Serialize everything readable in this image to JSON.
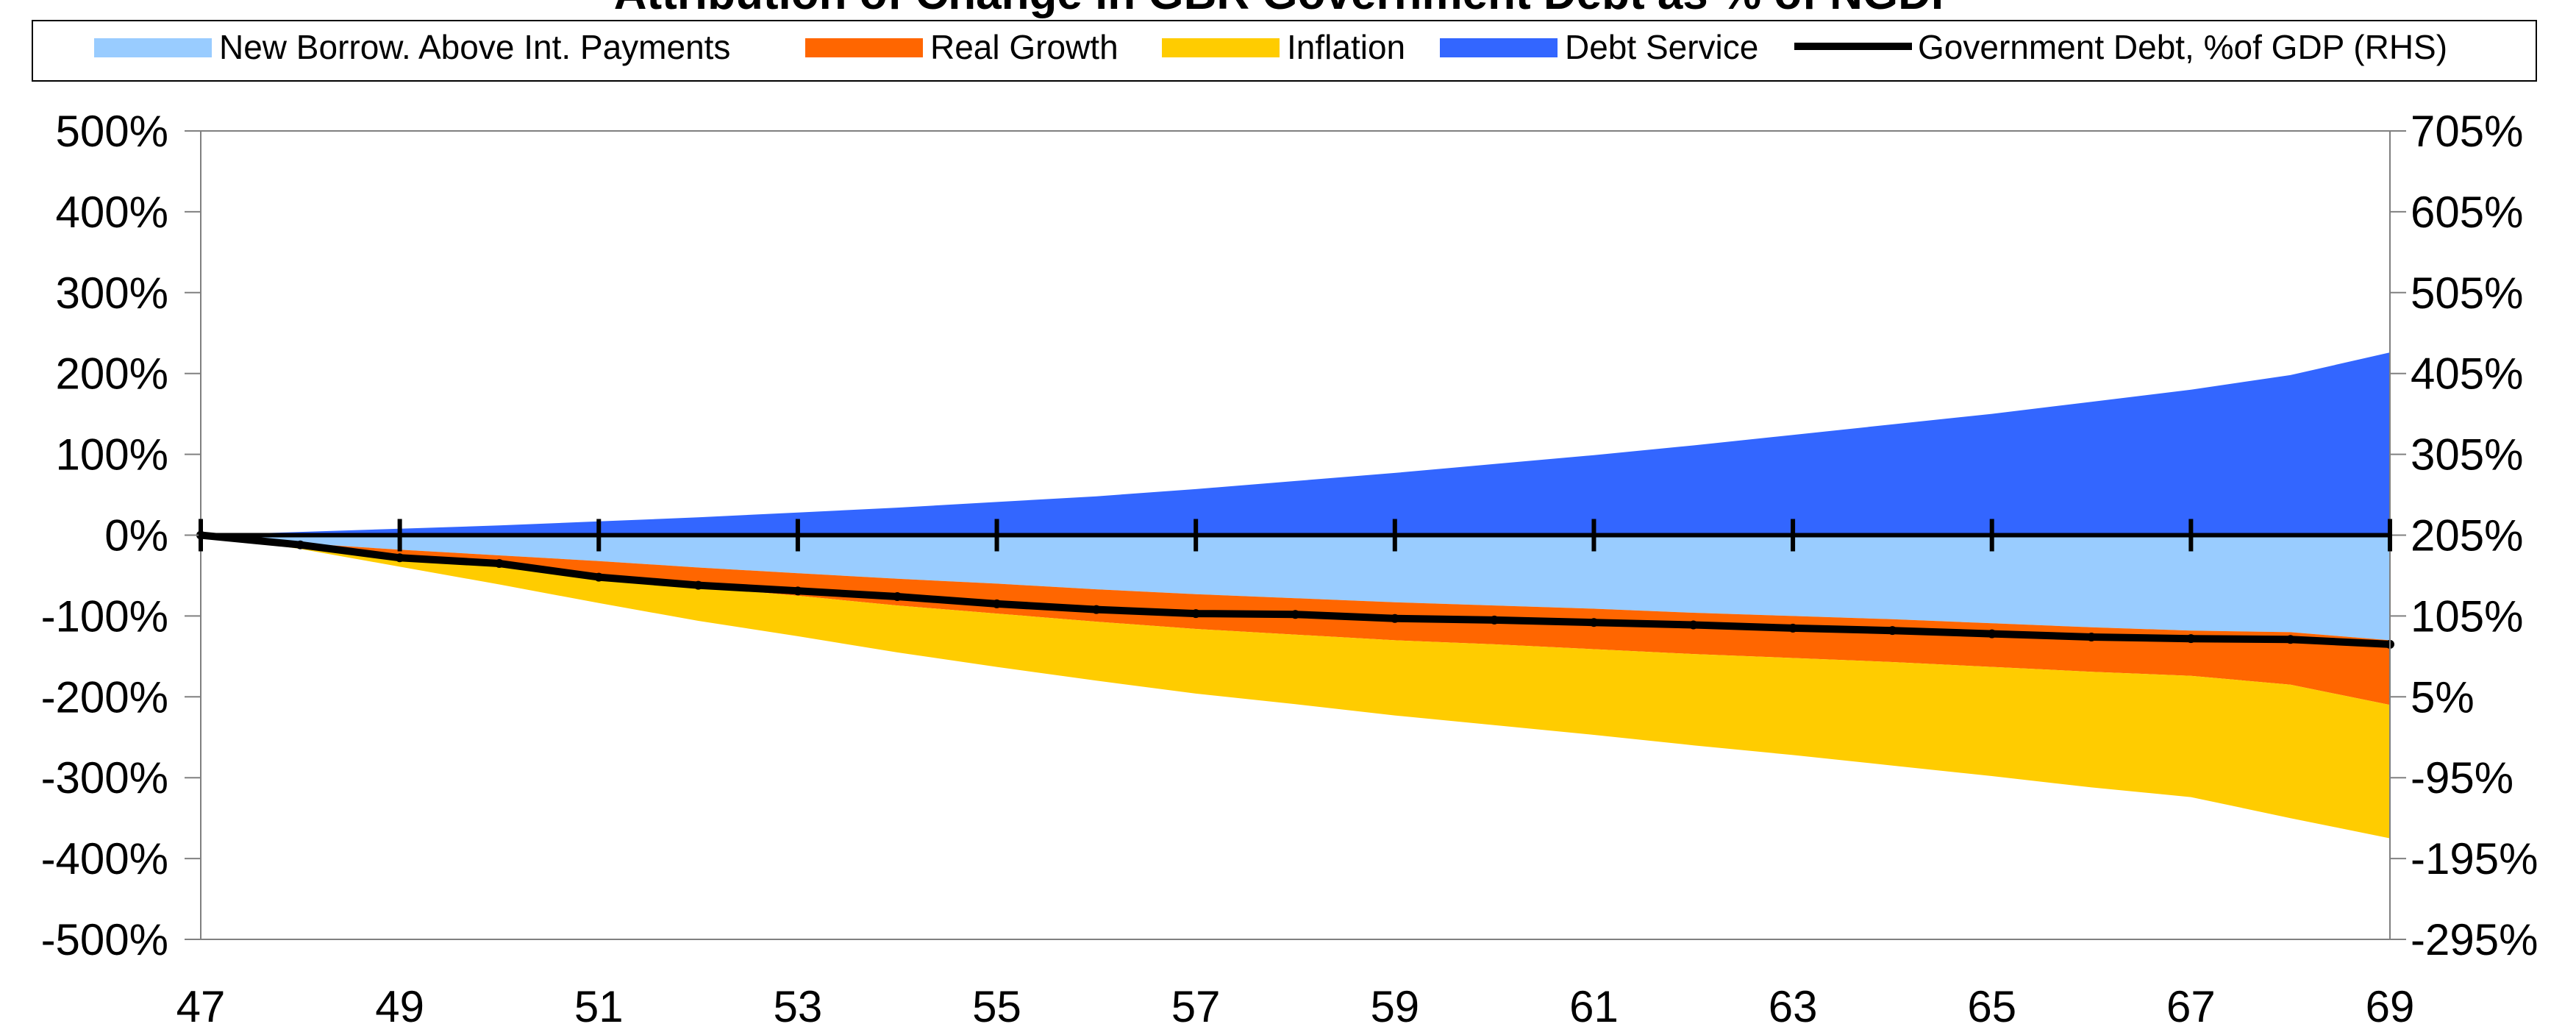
{
  "chart_data": {
    "type": "area",
    "title": "Attribution of Change in GBR Government Debt as % of NGDP",
    "legend": {
      "placement": "top",
      "items": [
        {
          "key": "new_borrowing",
          "label": "New Borrow. Above Int. Payments",
          "symbol": "box",
          "color": "#99ccff"
        },
        {
          "key": "real_growth",
          "label": "Real Growth",
          "symbol": "box",
          "color": "#ff6600"
        },
        {
          "key": "inflation",
          "label": "Inflation",
          "symbol": "box",
          "color": "#ffcc00"
        },
        {
          "key": "debt_service",
          "label": "Debt Service",
          "symbol": "box",
          "color": "#3366ff"
        },
        {
          "key": "gov_debt",
          "label": "Government Debt, %of GDP (RHS)",
          "symbol": "line",
          "color": "#000000"
        }
      ]
    },
    "x_tick_labels": [
      "47",
      "49",
      "51",
      "53",
      "55",
      "57",
      "59",
      "61",
      "63",
      "65",
      "67",
      "69"
    ],
    "xlim": [
      47,
      69
    ],
    "y_left": {
      "ticks": [
        500,
        400,
        300,
        200,
        100,
        0,
        -100,
        -200,
        -300,
        -400,
        -500
      ],
      "tick_labels": [
        "500%",
        "400%",
        "300%",
        "200%",
        "100%",
        "0%",
        "-100%",
        "-200%",
        "-300%",
        "-400%",
        "-500%"
      ],
      "range": [
        -500,
        500
      ]
    },
    "y_right": {
      "tick_labels": [
        "705%",
        "605%",
        "505%",
        "405%",
        "305%",
        "205%",
        "105%",
        "5%",
        "-95%",
        "-195%",
        "-295%"
      ],
      "range": [
        -295,
        705
      ]
    },
    "grid": false,
    "x": [
      47,
      48,
      49,
      50,
      51,
      52,
      53,
      54,
      55,
      56,
      57,
      58,
      59,
      60,
      61,
      62,
      63,
      64,
      65,
      66,
      67,
      68,
      69
    ],
    "series": [
      {
        "name": "Debt Service",
        "values": [
          0,
          4,
          8,
          12,
          17,
          22,
          28,
          34,
          41,
          48,
          57,
          67,
          77,
          88,
          99,
          111,
          124,
          137,
          150,
          165,
          180,
          198,
          226
        ]
      },
      {
        "name": "New Borrow. Above Int. Payments",
        "values": [
          0,
          -10,
          -18,
          -25,
          -32,
          -40,
          -47,
          -54,
          -60,
          -67,
          -73,
          -78,
          -83,
          -87,
          -91,
          -96,
          -100,
          -104,
          -109,
          -114,
          -118,
          -120,
          -130
        ]
      },
      {
        "name": "Real Growth",
        "values": [
          0,
          -4,
          -9,
          -14,
          -19,
          -24,
          -28,
          -33,
          -37,
          -40,
          -43,
          -45,
          -47,
          -48,
          -50,
          -51,
          -52,
          -53,
          -54,
          -55,
          -56,
          -65,
          -80
        ]
      },
      {
        "name": "Inflation",
        "values": [
          0,
          -3,
          -12,
          -22,
          -33,
          -42,
          -50,
          -58,
          -66,
          -73,
          -80,
          -86,
          -93,
          -100,
          -106,
          -113,
          -120,
          -128,
          -135,
          -143,
          -150,
          -165,
          -165
        ]
      },
      {
        "name": "Government Debt, %of GDP (RHS)",
        "axis": "right",
        "values": [
          205,
          193,
          177,
          170,
          153,
          143,
          136,
          129,
          120,
          113,
          108,
          107,
          102,
          100,
          97,
          94,
          90,
          87,
          83,
          79,
          77,
          76,
          70
        ]
      }
    ]
  }
}
